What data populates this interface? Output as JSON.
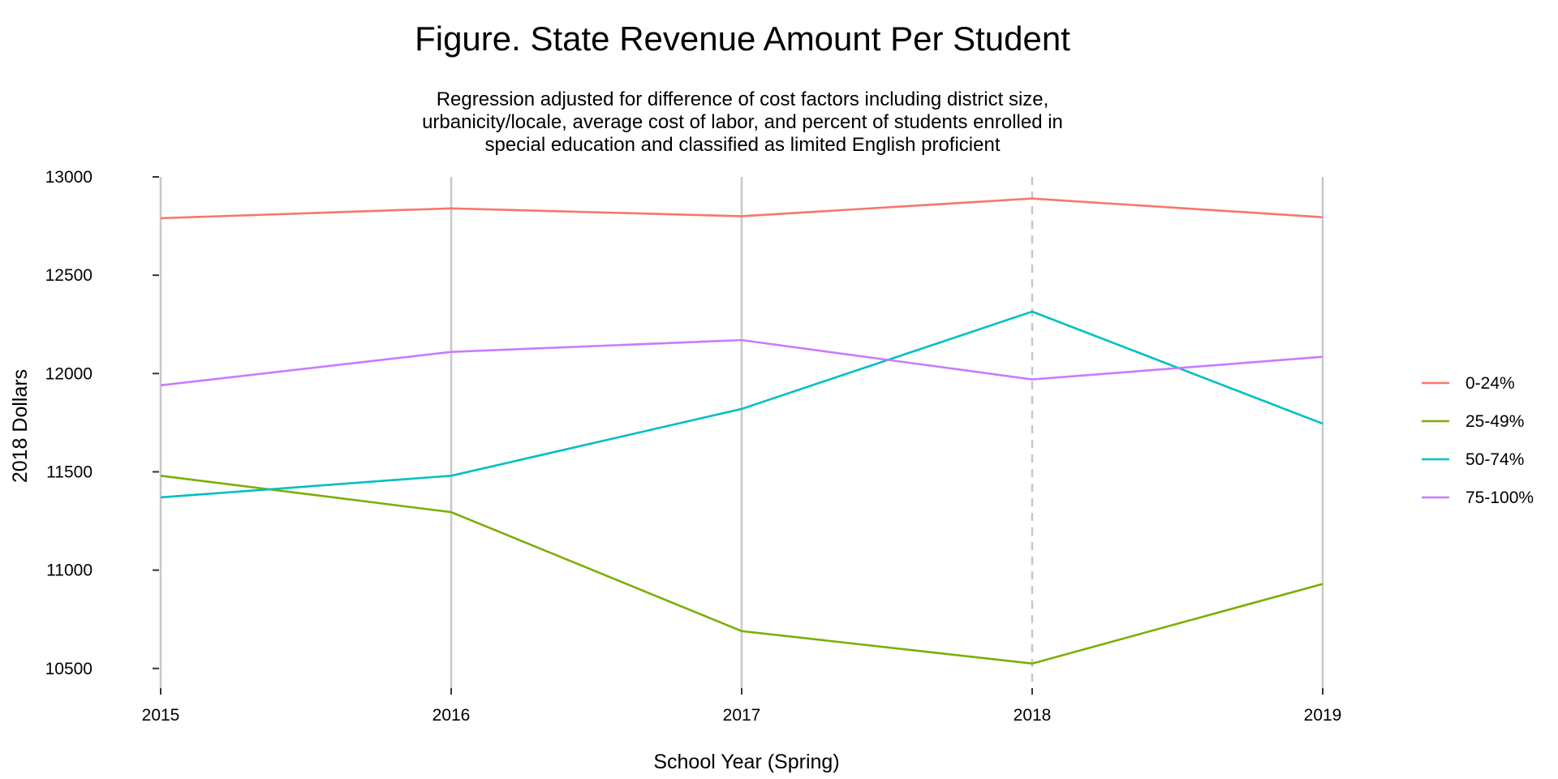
{
  "chart_data": {
    "type": "line",
    "title": "Figure. State Revenue Amount Per Student",
    "subtitle_lines": [
      "Regression adjusted for difference of cost factors including district size,",
      "urbanicity/locale, average cost of labor, and percent of students enrolled in",
      "special education and classified as limited English proficient"
    ],
    "xlabel": "School Year (Spring)",
    "ylabel": "2018 Dollars",
    "x": [
      2015,
      2016,
      2017,
      2018,
      2019
    ],
    "x_tick_labels": [
      "2015",
      "2016",
      "2017",
      "2018",
      "2019"
    ],
    "y_ticks": [
      10500,
      11000,
      11500,
      12000,
      12500,
      13000
    ],
    "y_tick_labels": [
      "10500",
      "11000",
      "11500",
      "12000",
      "12500",
      "13000"
    ],
    "ylim": [
      10400,
      13000
    ],
    "grid": "vertical lines at each year",
    "dashed_vertical_at": 2018,
    "legend_position": "right",
    "series": [
      {
        "name": "0-24%",
        "color": "#F8766D",
        "values": [
          12790,
          12840,
          12800,
          12890,
          12795
        ]
      },
      {
        "name": "25-49%",
        "color": "#7CAE00",
        "values": [
          11480,
          11295,
          10690,
          10525,
          10930
        ]
      },
      {
        "name": "50-74%",
        "color": "#00BFC4",
        "values": [
          11370,
          11480,
          11820,
          12315,
          11745
        ]
      },
      {
        "name": "75-100%",
        "color": "#C77CFF",
        "values": [
          11940,
          12110,
          12170,
          11970,
          12085
        ]
      }
    ]
  }
}
